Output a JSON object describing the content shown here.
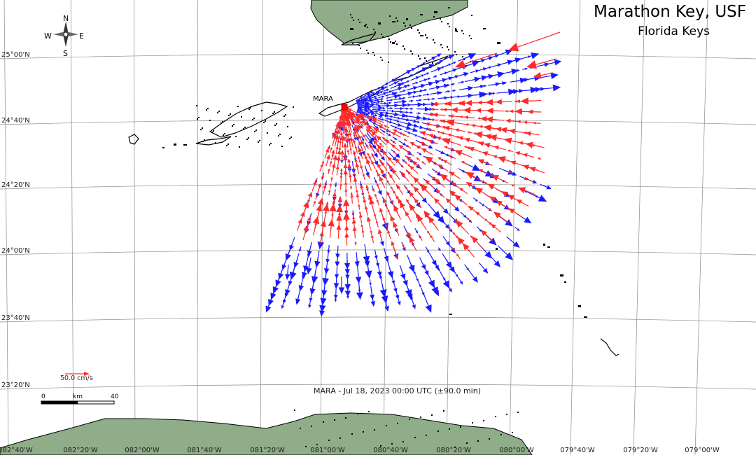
{
  "header": {
    "title": "Marathon Key, USF",
    "subtitle": "Florida Keys"
  },
  "caption": "MARA - Jul 18, 2023 00:00 UTC (±90.0 min)",
  "station": {
    "label": "MARA",
    "marker_color": "#ff0000"
  },
  "compass": {
    "n": "N",
    "s": "S",
    "e": "E",
    "w": "W"
  },
  "reference_vector": {
    "label": "50.0 cm/s",
    "color": "#ff3030"
  },
  "scale_bar": {
    "start": "0",
    "unit": "km",
    "end": "40"
  },
  "axes": {
    "latitude_labels": [
      "25°00'N",
      "24°40'N",
      "24°20'N",
      "24°00'N",
      "23°40'N",
      "23°20'N"
    ],
    "longitude_labels": [
      "082°40'W",
      "082°20'W",
      "082°00'W",
      "081°40'W",
      "081°20'W",
      "081°00'W",
      "080°40'W",
      "080°20'W",
      "080°00'W",
      "079°40'W",
      "079°20'W",
      "079°00'W"
    ]
  },
  "colors": {
    "land": "#8fad88",
    "toward_station": "#ff2a2a",
    "away_from_station": "#1a1aff",
    "grid": "#8a8a8a"
  }
}
